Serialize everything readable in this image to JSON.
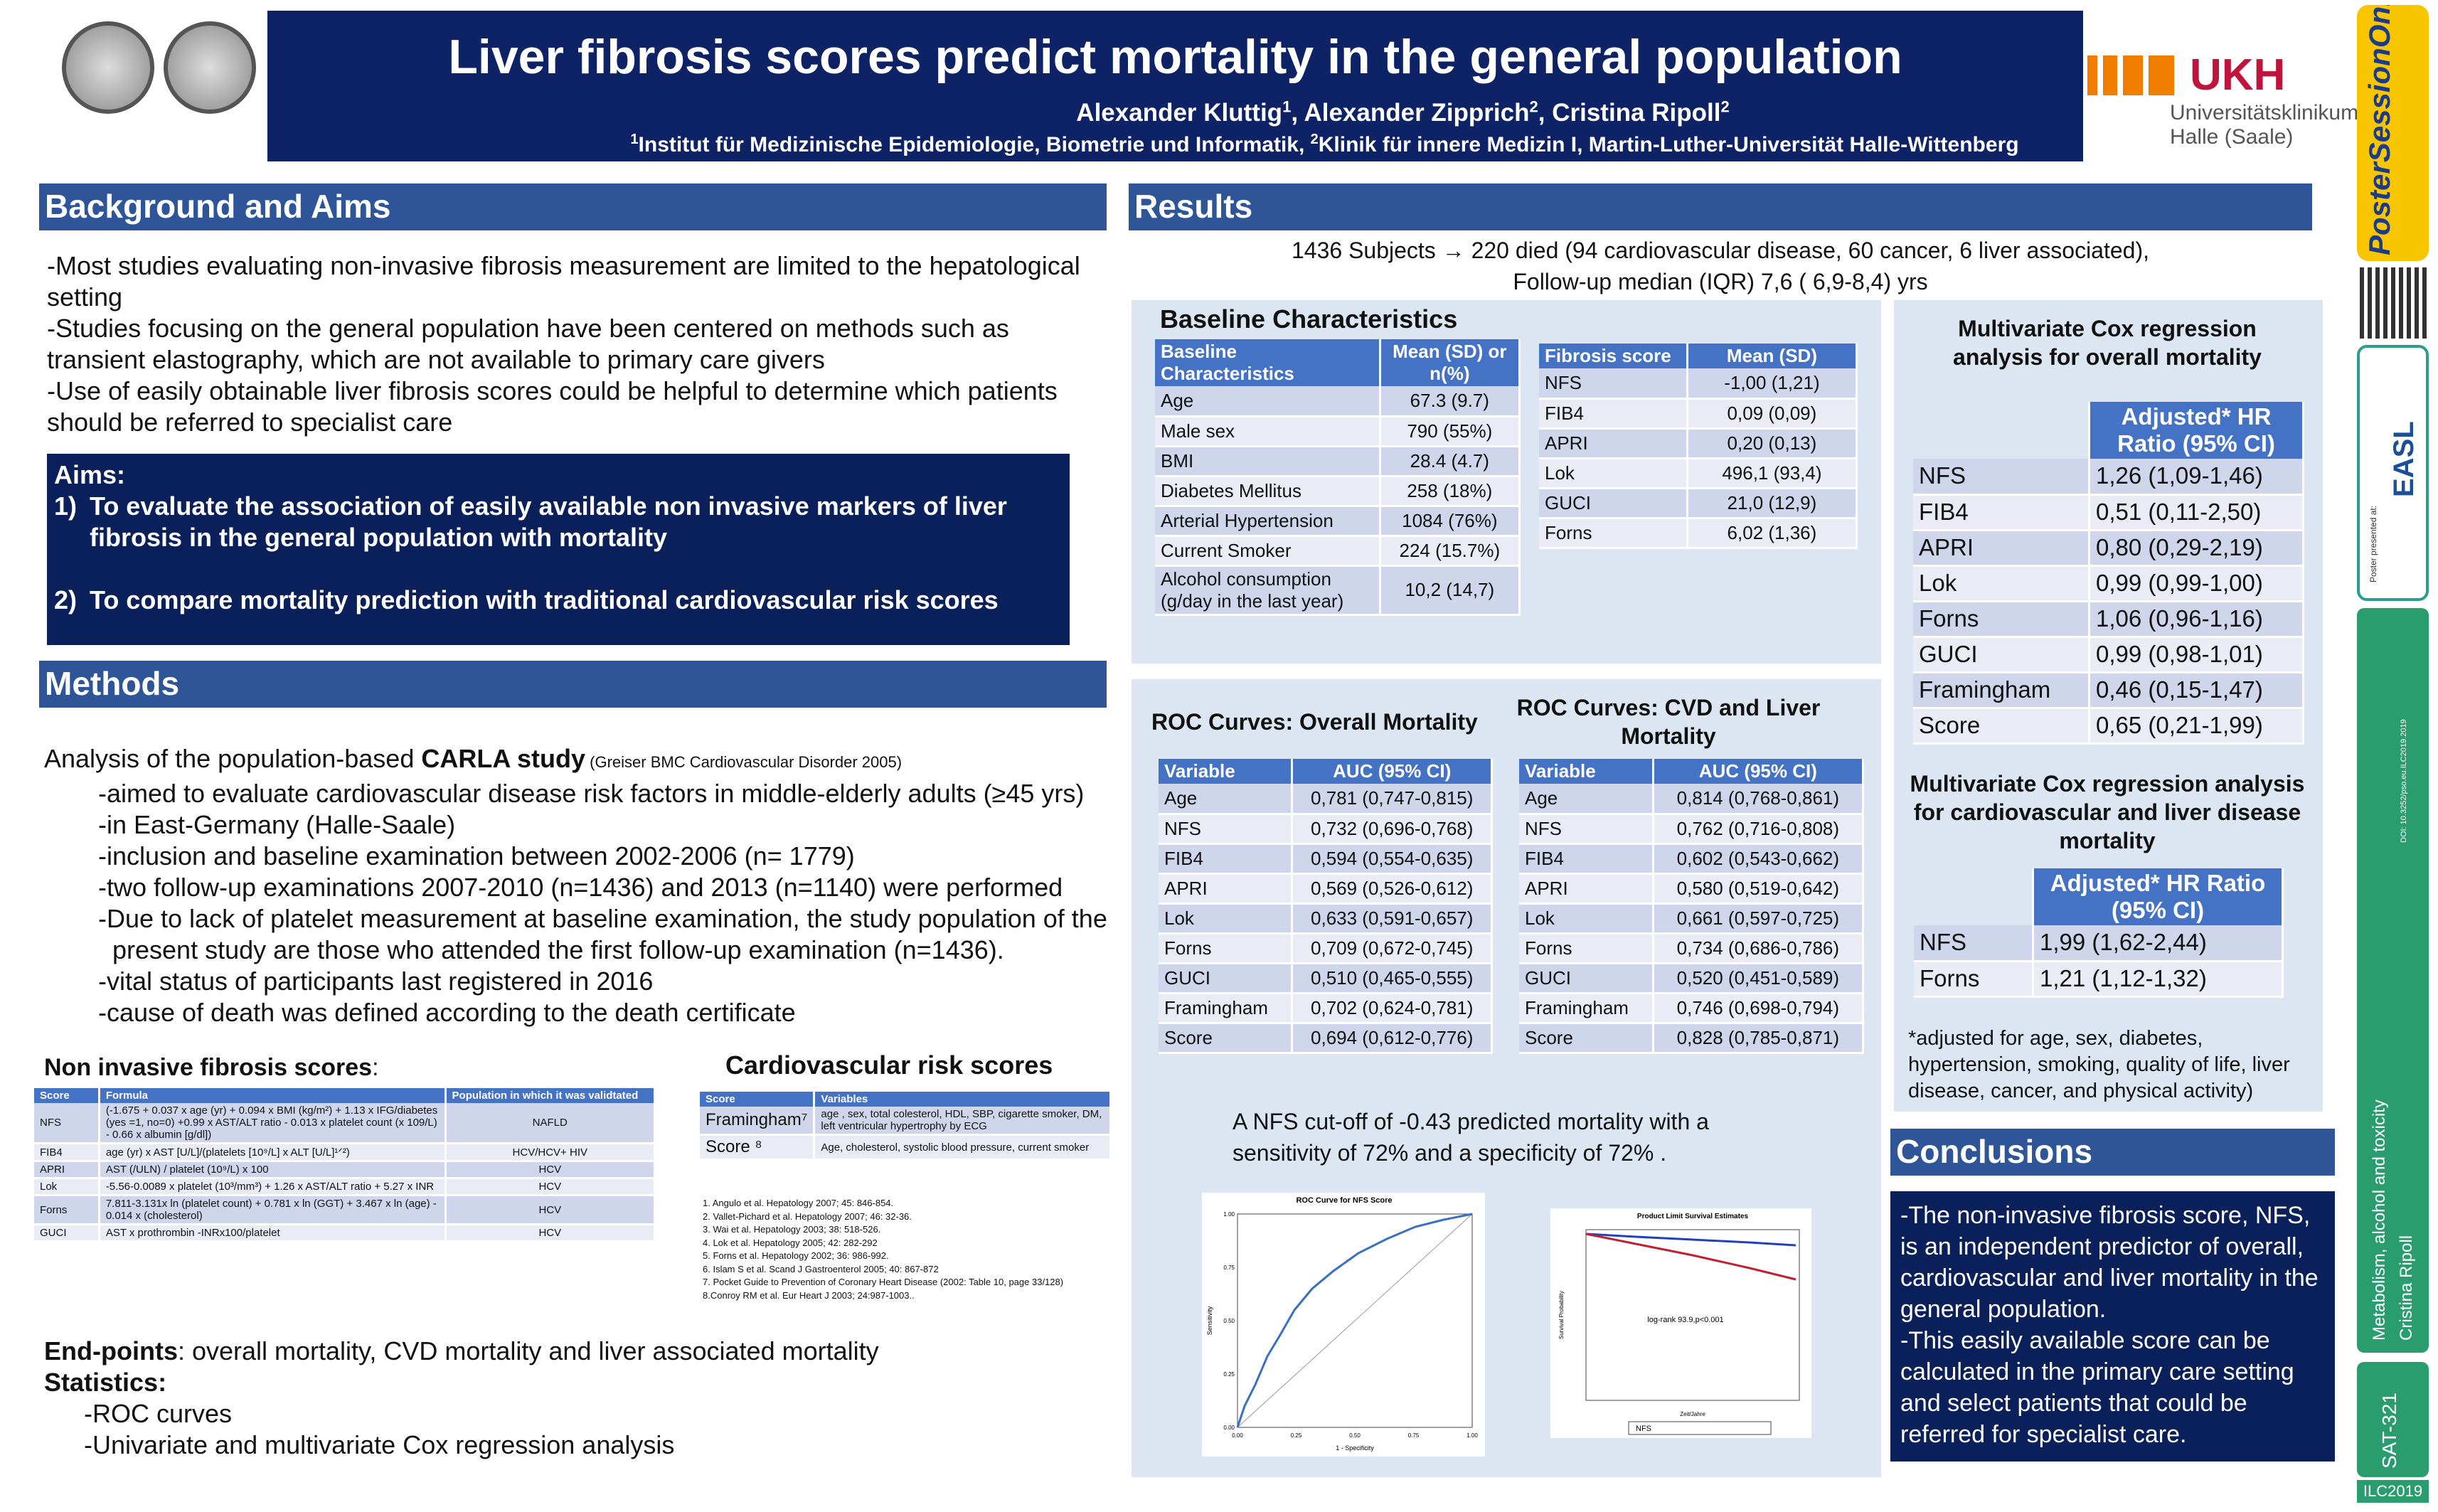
{
  "header": {
    "title": "Liver fibrosis scores predict mortality in the general population",
    "authors": [
      {
        "name": "Alexander Kluttig",
        "sup": "1"
      },
      {
        "name": "Alexander Zipprich",
        "sup": "2"
      },
      {
        "name": "Cristina Ripoll",
        "sup": "2"
      }
    ],
    "affiliations": [
      {
        "sup": "1",
        "text": "Institut für Medizinische Epidemiologie, Biometrie und Informatik, "
      },
      {
        "sup": "2",
        "text": "Klinik für innere Medizin I, Martin-Luther-Universität Halle-Wittenberg"
      }
    ],
    "logo": {
      "short": "UKH",
      "line1": "Universitätsklinikum",
      "line2": "Halle (Saale)"
    }
  },
  "sidebar": {
    "poster": "Poster",
    "session": "SessionOnline",
    "presented": "Poster presented at:",
    "easl": "EASL",
    "doi": "DOI: 10.3252/pso.eu.ILC2019.2019",
    "topic": "Metabolism, alcohol and toxicity",
    "author": "Cristina Ripoll",
    "code": "SAT-321",
    "congress": "ILC2019"
  },
  "background": {
    "heading": "Background and Aims",
    "paragraphs": [
      "-Most studies evaluating non-invasive fibrosis measurement are limited to the hepatological setting",
      "-Studies focusing on the general population have been centered on methods such as transient elastography, which are not available to primary care givers",
      "-Use of easily obtainable liver fibrosis scores could be helpful to determine which patients should be referred to specialist care"
    ],
    "aims_heading": "Aims:",
    "aims": [
      {
        "num": "1)",
        "text": "To evaluate the association of easily available non invasive markers of liver fibrosis in the general population with mortality"
      },
      {
        "num": "2)",
        "text": "To compare mortality prediction with traditional cardiovascular risk scores"
      }
    ]
  },
  "methods": {
    "heading": "Methods",
    "intro": "Analysis of the population-based ",
    "study": "CARLA study",
    "citation": " (Greiser BMC Cardiovascular Disorder 2005)",
    "items": [
      "-aimed to evaluate cardiovascular disease risk factors in middle-elderly adults (≥45 yrs)",
      "-in East-Germany (Halle-Saale)",
      "-inclusion and baseline examination between 2002-2006  (n= 1779)",
      "-two follow-up examinations 2007-2010 (n=1436) and 2013 (n=1140) were performed",
      "-Due to lack of platelet measurement at baseline examination, the study population of the present study are those who attended the first follow-up examination (n=1436).",
      "-vital status of participants last registered in 2016",
      "-cause of death was defined according to the death certificate"
    ],
    "fibrosis_title": "Non invasive fibrosis scores",
    "fibrosis_colon": ":",
    "fibrosis_table": {
      "header": [
        "Score",
        "Formula",
        "Population in which it was validtated"
      ],
      "rows": [
        [
          "NFS",
          "(-1.675 + 0.037 x age (yr) + 0.094 x BMI (kg/m²) + 1.13 x IFG/diabetes (yes =1, no=0) +0.99 x AST/ALT ratio - 0.013 x platelet count (x 109/L) - 0.66 x albumin [g/dl])",
          "NAFLD"
        ],
        [
          "FIB4",
          "age (yr) x AST [U/L]/(platelets [10⁹/L] x ALT [U/L]¹ᐟ²)",
          "HCV/HCV+ HIV"
        ],
        [
          "APRI",
          "AST (/ULN) / platelet (10⁹/L) x 100",
          "HCV"
        ],
        [
          "Lok",
          "-5.56-0.0089 x platelet (10³/mm³) + 1.26 x AST/ALT ratio + 5.27 x INR",
          "HCV"
        ],
        [
          "Forns",
          "7.811-3.131x ln (platelet count) + 0.781 x ln (GGT) + 3.467 x ln (age) - 0.014 x (cholesterol)",
          "HCV"
        ],
        [
          "GUCI",
          "AST x prothrombin -INRx100/platelet",
          "HCV"
        ]
      ]
    },
    "cv_title": "Cardiovascular risk scores",
    "cv_table": {
      "header": [
        "Score",
        "Variables"
      ],
      "rows": [
        [
          "Framingham⁷",
          "age , sex, total colesterol, HDL, SBP, cigarette smoker, DM, left ventricular hypertrophy by ECG"
        ],
        [
          "Score ⁸",
          "Age, cholesterol, systolic blood pressure, current smoker"
        ]
      ]
    },
    "references": [
      "1. Angulo et al. Hepatology 2007; 45: 846-854.",
      "2. Vallet-Pichard et al. Hepatology 2007; 46: 32-36.",
      "3. Wai et al. Hepatology 2003; 38: 518-526.",
      "4. Lok et al. Hepatology 2005; 42: 282-292",
      "5. Forns et al. Hepatology 2002; 36: 986-992.",
      "6. Islam S et al. Scand J Gastroenterol 2005; 40: 867-872",
      "7. Pocket Guide to Prevention of Coronary Heart Disease (2002: Table 10, page 33/128)",
      "8.Conroy RM et al. Eur Heart J 2003; 24:987-1003.."
    ],
    "endpoints_label": "End-points",
    "endpoints_text": ": overall mortality, CVD mortality and liver associated mortality",
    "statistics_label": "Statistics:",
    "statistics": [
      "-ROC curves",
      "-Univariate and multivariate Cox regression analysis"
    ]
  },
  "results": {
    "heading": "Results",
    "summary": [
      "1436 Subjects → 220 died (94 cardiovascular disease, 60 cancer, 6 liver associated),",
      "Follow-up median (IQR)  7,6 ( 6,9-8,4) yrs"
    ],
    "baseline_title": "Baseline Characteristics",
    "baseline_table": {
      "header": [
        "Baseline Characteristics",
        "Mean (SD) or n(%)"
      ],
      "rows": [
        [
          "Age",
          "67.3 (9.7)"
        ],
        [
          "Male sex",
          "790 (55%)"
        ],
        [
          "BMI",
          "28.4 (4.7)"
        ],
        [
          "Diabetes Mellitus",
          "258 (18%)"
        ],
        [
          "Arterial Hypertension",
          "1084 (76%)"
        ],
        [
          "Current Smoker",
          "224 (15.7%)"
        ],
        [
          "Alcohol consumption (g/day in the last year)",
          "10,2 (14,7)"
        ]
      ]
    },
    "fibrosis_mean_table": {
      "header": [
        "Fibrosis score",
        "Mean (SD)"
      ],
      "rows": [
        [
          "NFS",
          "-1,00 (1,21)"
        ],
        [
          "FIB4",
          "0,09 (0,09)"
        ],
        [
          "APRI",
          "0,20 (0,13)"
        ],
        [
          "Lok",
          "496,1 (93,4)"
        ],
        [
          "GUCI",
          "21,0 (12,9)"
        ],
        [
          "Forns",
          "6,02 (1,36)"
        ]
      ]
    },
    "cox_overall_title": "Multivariate Cox regression analysis for overall mortality",
    "cox_overall_table": {
      "header": [
        "Adjusted* HR Ratio (95% CI)"
      ],
      "rows": [
        [
          "NFS",
          "1,26 (1,09-1,46)"
        ],
        [
          "FIB4",
          "0,51 (0,11-2,50)"
        ],
        [
          "APRI",
          "0,80 (0,29-2,19)"
        ],
        [
          "Lok",
          "0,99 (0,99-1,00)"
        ],
        [
          "Forns",
          "1,06 (0,96-1,16)"
        ],
        [
          "GUCI",
          "0,99 (0,98-1,01)"
        ],
        [
          "Framingham",
          "0,46 (0,15-1,47)"
        ],
        [
          "Score",
          "0,65 (0,21-1,99)"
        ]
      ]
    },
    "cox_cvd_title": "Multivariate Cox regression analysis for cardiovascular and liver disease mortality",
    "cox_cvd_table": {
      "header": [
        "Adjusted* HR Ratio (95% CI)"
      ],
      "rows": [
        [
          "NFS",
          "1,99 (1,62-2,44)"
        ],
        [
          "Forns",
          "1,21 (1,12-1,32)"
        ]
      ]
    },
    "footnote": "*adjusted for age, sex, diabetes, hypertension, smoking, quality of life, liver disease, cancer, and physical activity)",
    "roc_overall_title": "ROC Curves: Overall Mortality",
    "roc_overall_table": {
      "header": [
        "Variable",
        "AUC (95% CI)"
      ],
      "rows": [
        [
          "Age",
          "0,781 (0,747-0,815)"
        ],
        [
          "NFS",
          "0,732 (0,696-0,768)"
        ],
        [
          "FIB4",
          "0,594 (0,554-0,635)"
        ],
        [
          "APRI",
          "0,569 (0,526-0,612)"
        ],
        [
          "Lok",
          "0,633 (0,591-0,657)"
        ],
        [
          "Forns",
          "0,709 (0,672-0,745)"
        ],
        [
          "GUCI",
          "0,510 (0,465-0,555)"
        ],
        [
          "Framingham",
          "0,702 (0,624-0,781)"
        ],
        [
          "Score",
          "0,694 (0,612-0,776)"
        ]
      ]
    },
    "roc_cvd_title": "ROC Curves: CVD  and Liver Mortality",
    "roc_cvd_table": {
      "header": [
        "Variable",
        "AUC (95% CI)"
      ],
      "rows": [
        [
          "Age",
          "0,814 (0,768-0,861)"
        ],
        [
          "NFS",
          "0,762 (0,716-0,808)"
        ],
        [
          "FIB4",
          "0,602 (0,543-0,662)"
        ],
        [
          "APRI",
          "0,580 (0,519-0,642)"
        ],
        [
          "Lok",
          "0,661 (0,597-0,725)"
        ],
        [
          "Forns",
          "0,734 (0,686-0,786)"
        ],
        [
          "GUCI",
          "0,520 (0,451-0,589)"
        ],
        [
          "Framingham",
          "0,746 (0,698-0,794)"
        ],
        [
          "Score",
          "0,828 (0,785-0,871)"
        ]
      ]
    },
    "cutoff": "A NFS cut-off of -0.43 predicted mortality with a sensitivity of 72% and a specificity of 72% .",
    "roc_figure": {
      "title": "ROC Curve for NFS Score",
      "xlabel": "1 - Specificity",
      "ylabel": "Sensitivity",
      "ticks": [
        "0.00",
        "0.25",
        "0.50",
        "0.75",
        "1.00"
      ]
    },
    "km_figure": {
      "title": "Product Limit Survival Estimates",
      "note": "log-rank 93.9,p<0.001",
      "legend": "NFS",
      "xlabel": "Zeit/Jahre",
      "ylabel": "Survival Probability"
    }
  },
  "conclusions": {
    "heading": "Conclusions",
    "items": [
      "-The non-invasive fibrosis score, NFS, is an independent predictor of overall, cardiovascular and liver mortality in the general population.",
      "-This easily available score can be calculated in the primary care setting and select patients that could be referred for specialist care."
    ]
  }
}
